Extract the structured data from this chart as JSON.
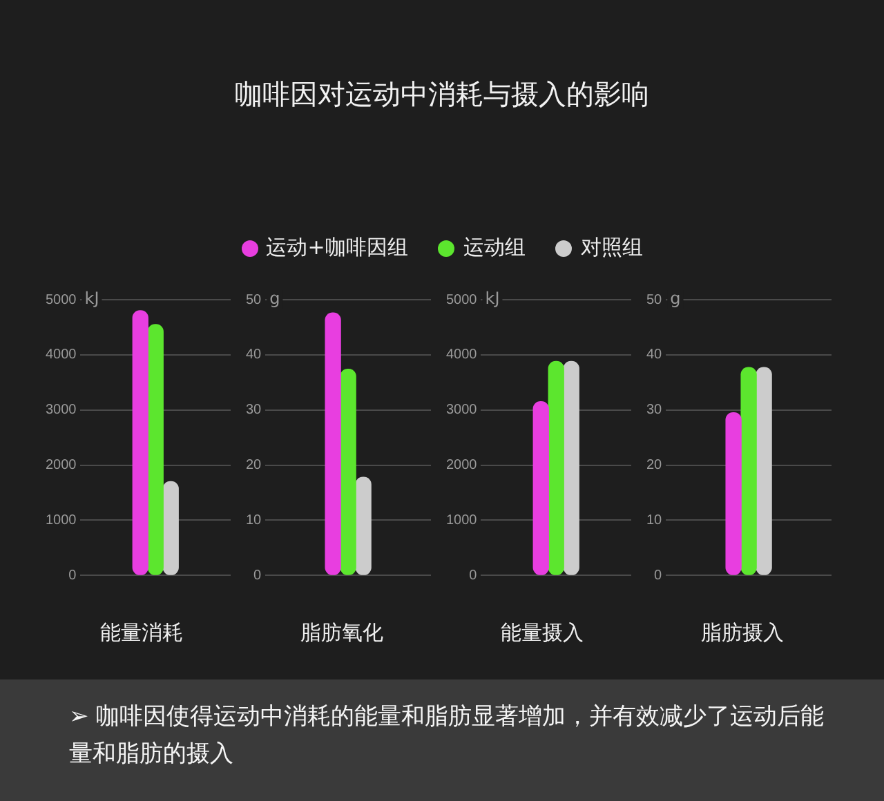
{
  "chart_data": [
    {
      "type": "bar",
      "title": "咖啡因对运动中消耗与摄入的影响",
      "xlabel": "能量消耗",
      "categories": [
        null
      ],
      "legend": "top",
      "grid": "y",
      "series": [
        {
          "name": "运动+咖啡因组",
          "color": "#e83ee0",
          "values": [
            4800
          ]
        },
        {
          "name": "运动组",
          "color": "#5ce62e",
          "values": [
            4550
          ]
        },
        {
          "name": "对照组",
          "color": "#cccccc",
          "values": [
            1700
          ]
        }
      ],
      "ylim": [
        0,
        5000
      ],
      "yticks": [
        0,
        1000,
        2000,
        3000,
        4000,
        5000
      ],
      "ylabel": "kJ"
    },
    {
      "type": "bar",
      "xlabel": "脂肪氧化",
      "categories": [
        null
      ],
      "grid": "y",
      "series": [
        {
          "color": "#e83ee0",
          "values": [
            47.6
          ]
        },
        {
          "color": "#5ce62e",
          "values": [
            37.4
          ]
        },
        {
          "color": "#cccccc",
          "values": [
            17.8
          ]
        }
      ],
      "ylim": [
        0,
        50
      ],
      "yticks": [
        0,
        10,
        20,
        30,
        40,
        50
      ],
      "ylabel": "g"
    },
    {
      "type": "bar",
      "xlabel": "能量摄入",
      "categories": [
        null
      ],
      "grid": "y",
      "series": [
        {
          "color": "#e83ee0",
          "values": [
            3150
          ]
        },
        {
          "color": "#5ce62e",
          "values": [
            3880
          ]
        },
        {
          "color": "#cccccc",
          "values": [
            3880
          ]
        }
      ],
      "ylim": [
        0,
        5000
      ],
      "yticks": [
        0,
        1000,
        2000,
        3000,
        4000,
        5000
      ],
      "ylabel": "kJ"
    },
    {
      "type": "bar",
      "xlabel": "脂肪摄入",
      "categories": [
        null
      ],
      "grid": "y",
      "series": [
        {
          "color": "#e83ee0",
          "values": [
            29.5
          ]
        },
        {
          "color": "#5ce62e",
          "values": [
            37.7
          ]
        },
        {
          "color": "#cccccc",
          "values": [
            37.7
          ]
        }
      ],
      "ylim": [
        0,
        50
      ],
      "yticks": [
        0,
        10,
        20,
        30,
        40,
        50
      ],
      "ylabel": "g",
      "annotations": [
        "➢ 咖啡因使得运动中消耗的能量和脂肪显著增加，并有效减少了运动后能量和脂肪的摄入"
      ]
    }
  ]
}
